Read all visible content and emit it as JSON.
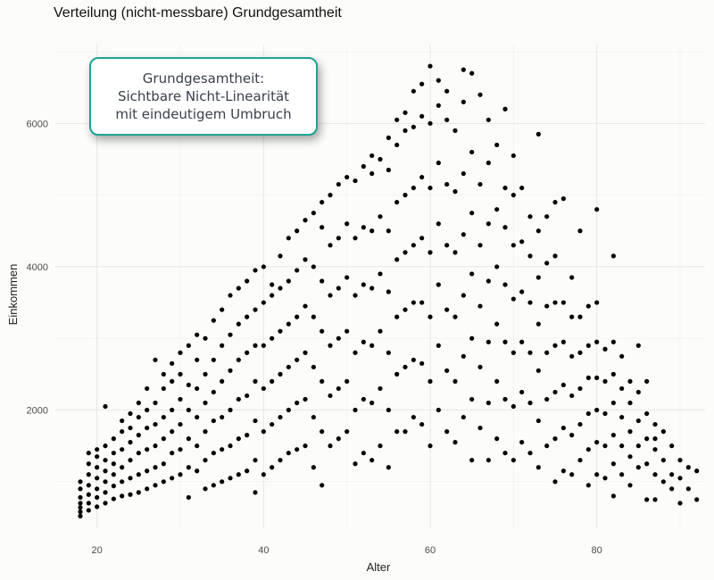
{
  "chart_data": {
    "type": "scatter",
    "title": "Verteilung (nicht-messbare) Grundgesamtheit",
    "xlabel": "Alter",
    "ylabel": "Einkommen",
    "xlim": [
      15,
      93
    ],
    "ylim": [
      350,
      7100
    ],
    "x_ticks": [
      20,
      40,
      60,
      80
    ],
    "y_ticks": [
      2000,
      4000,
      6000
    ],
    "grid": true,
    "point_color": "#000000",
    "annotation": {
      "lines": [
        "Grundgesamtheit:",
        "Sichtbare Nicht-Linearität",
        "mit eindeutigem Umbruch"
      ],
      "border_color": "#1fa393"
    },
    "trend_description": "increasing until about age 60, then decreasing",
    "points": [
      [
        18,
        520
      ],
      [
        18,
        640
      ],
      [
        18,
        780
      ],
      [
        18,
        900
      ],
      [
        18,
        1000
      ],
      [
        18,
        700
      ],
      [
        18,
        580
      ],
      [
        19,
        600
      ],
      [
        19,
        820
      ],
      [
        19,
        950
      ],
      [
        19,
        1100
      ],
      [
        19,
        1250
      ],
      [
        19,
        1400
      ],
      [
        19,
        700
      ],
      [
        20,
        650
      ],
      [
        20,
        900
      ],
      [
        20,
        1050
      ],
      [
        20,
        1200
      ],
      [
        20,
        1350
      ],
      [
        20,
        1450
      ],
      [
        20,
        780
      ],
      [
        21,
        700
      ],
      [
        21,
        850
      ],
      [
        21,
        1000
      ],
      [
        21,
        1150
      ],
      [
        21,
        1300
      ],
      [
        21,
        1500
      ],
      [
        21,
        2050
      ],
      [
        22,
        760
      ],
      [
        22,
        940
      ],
      [
        22,
        1100
      ],
      [
        22,
        1250
      ],
      [
        22,
        1400
      ],
      [
        22,
        1600
      ],
      [
        23,
        800
      ],
      [
        23,
        1000
      ],
      [
        23,
        1200
      ],
      [
        23,
        1450
      ],
      [
        23,
        1700
      ],
      [
        23,
        1850
      ],
      [
        24,
        820
      ],
      [
        24,
        1050
      ],
      [
        24,
        1300
      ],
      [
        24,
        1550
      ],
      [
        24,
        1750
      ],
      [
        24,
        1950
      ],
      [
        25,
        850
      ],
      [
        25,
        1100
      ],
      [
        25,
        1400
      ],
      [
        25,
        1650
      ],
      [
        25,
        1900
      ],
      [
        25,
        2100
      ],
      [
        26,
        900
      ],
      [
        26,
        1150
      ],
      [
        26,
        1450
      ],
      [
        26,
        1750
      ],
      [
        26,
        2000
      ],
      [
        26,
        2300
      ],
      [
        27,
        950
      ],
      [
        27,
        1200
      ],
      [
        27,
        1500
      ],
      [
        27,
        1800
      ],
      [
        27,
        2100
      ],
      [
        27,
        2700
      ],
      [
        28,
        1000
      ],
      [
        28,
        1250
      ],
      [
        28,
        1600
      ],
      [
        28,
        1900
      ],
      [
        28,
        2300
      ],
      [
        28,
        2500
      ],
      [
        29,
        1050
      ],
      [
        29,
        1400
      ],
      [
        29,
        1700
      ],
      [
        29,
        2000
      ],
      [
        29,
        2400
      ],
      [
        29,
        2650
      ],
      [
        30,
        1100
      ],
      [
        30,
        1450
      ],
      [
        30,
        1800
      ],
      [
        30,
        2150
      ],
      [
        30,
        2500
      ],
      [
        30,
        2800
      ],
      [
        31,
        780
      ],
      [
        31,
        1200
      ],
      [
        31,
        1600
      ],
      [
        31,
        2000
      ],
      [
        31,
        2350
      ],
      [
        31,
        2900
      ],
      [
        32,
        1150
      ],
      [
        32,
        1500
      ],
      [
        32,
        1900
      ],
      [
        32,
        2300
      ],
      [
        32,
        2700
      ],
      [
        32,
        3050
      ],
      [
        33,
        900
      ],
      [
        33,
        1300
      ],
      [
        33,
        1700
      ],
      [
        33,
        2100
      ],
      [
        33,
        2500
      ],
      [
        33,
        3000
      ],
      [
        34,
        950
      ],
      [
        34,
        1400
      ],
      [
        34,
        1850
      ],
      [
        34,
        2250
      ],
      [
        34,
        2700
      ],
      [
        34,
        3250
      ],
      [
        35,
        1000
      ],
      [
        35,
        1450
      ],
      [
        35,
        1900
      ],
      [
        35,
        2400
      ],
      [
        35,
        2900
      ],
      [
        35,
        3400
      ],
      [
        36,
        1050
      ],
      [
        36,
        1500
      ],
      [
        36,
        2000
      ],
      [
        36,
        2550
      ],
      [
        36,
        3050
      ],
      [
        36,
        3600
      ],
      [
        37,
        1100
      ],
      [
        37,
        1600
      ],
      [
        37,
        2150
      ],
      [
        37,
        2700
      ],
      [
        37,
        3200
      ],
      [
        37,
        3700
      ],
      [
        38,
        1150
      ],
      [
        38,
        1650
      ],
      [
        38,
        2200
      ],
      [
        38,
        2800
      ],
      [
        38,
        3300
      ],
      [
        38,
        3800
      ],
      [
        39,
        850
      ],
      [
        39,
        1300
      ],
      [
        39,
        1850
      ],
      [
        39,
        2400
      ],
      [
        39,
        2900
      ],
      [
        39,
        3400
      ],
      [
        39,
        3950
      ],
      [
        40,
        1100
      ],
      [
        40,
        1700
      ],
      [
        40,
        2300
      ],
      [
        40,
        2900
      ],
      [
        40,
        3500
      ],
      [
        40,
        4000
      ],
      [
        41,
        1200
      ],
      [
        41,
        1800
      ],
      [
        41,
        2400
      ],
      [
        41,
        3000
      ],
      [
        41,
        3600
      ],
      [
        41,
        3750
      ],
      [
        42,
        1300
      ],
      [
        42,
        1900
      ],
      [
        42,
        2500
      ],
      [
        42,
        3100
      ],
      [
        42,
        3700
      ],
      [
        42,
        4150
      ],
      [
        43,
        1400
      ],
      [
        43,
        2000
      ],
      [
        43,
        2600
      ],
      [
        43,
        3200
      ],
      [
        43,
        3800
      ],
      [
        43,
        4400
      ],
      [
        44,
        1450
      ],
      [
        44,
        2100
      ],
      [
        44,
        2700
      ],
      [
        44,
        3300
      ],
      [
        44,
        3950
      ],
      [
        44,
        4500
      ],
      [
        45,
        1500
      ],
      [
        45,
        2150
      ],
      [
        45,
        2800
      ],
      [
        45,
        3450
      ],
      [
        45,
        4100
      ],
      [
        45,
        4650
      ],
      [
        46,
        1200
      ],
      [
        46,
        1900
      ],
      [
        46,
        2600
      ],
      [
        46,
        3300
      ],
      [
        46,
        4000
      ],
      [
        46,
        4750
      ],
      [
        47,
        950
      ],
      [
        47,
        1700
      ],
      [
        47,
        2400
      ],
      [
        47,
        3100
      ],
      [
        47,
        3800
      ],
      [
        47,
        4550
      ],
      [
        47,
        4900
      ],
      [
        48,
        1500
      ],
      [
        48,
        2200
      ],
      [
        48,
        2900
      ],
      [
        48,
        3600
      ],
      [
        48,
        4300
      ],
      [
        48,
        5000
      ],
      [
        49,
        1600
      ],
      [
        49,
        2300
      ],
      [
        49,
        3000
      ],
      [
        49,
        3700
      ],
      [
        49,
        4400
      ],
      [
        49,
        5150
      ],
      [
        50,
        1700
      ],
      [
        50,
        2400
      ],
      [
        50,
        3100
      ],
      [
        50,
        3850
      ],
      [
        50,
        4600
      ],
      [
        50,
        5250
      ],
      [
        51,
        1250
      ],
      [
        51,
        2000
      ],
      [
        51,
        2800
      ],
      [
        51,
        3600
      ],
      [
        51,
        4400
      ],
      [
        51,
        5200
      ],
      [
        52,
        1400
      ],
      [
        52,
        2150
      ],
      [
        52,
        2950
      ],
      [
        52,
        3750
      ],
      [
        52,
        4550
      ],
      [
        52,
        5400
      ],
      [
        53,
        1300
      ],
      [
        53,
        2100
      ],
      [
        53,
        2900
      ],
      [
        53,
        3700
      ],
      [
        53,
        4500
      ],
      [
        53,
        5300
      ],
      [
        53,
        5550
      ],
      [
        54,
        1500
      ],
      [
        54,
        2300
      ],
      [
        54,
        3100
      ],
      [
        54,
        3900
      ],
      [
        54,
        4700
      ],
      [
        54,
        5500
      ],
      [
        55,
        1200
      ],
      [
        55,
        2000
      ],
      [
        55,
        2800
      ],
      [
        55,
        3650
      ],
      [
        55,
        4500
      ],
      [
        55,
        5350
      ],
      [
        55,
        5800
      ],
      [
        56,
        1700
      ],
      [
        56,
        2500
      ],
      [
        56,
        3300
      ],
      [
        56,
        4100
      ],
      [
        56,
        4900
      ],
      [
        56,
        5700
      ],
      [
        56,
        6050
      ],
      [
        57,
        1700
      ],
      [
        57,
        2600
      ],
      [
        57,
        3400
      ],
      [
        57,
        4200
      ],
      [
        57,
        5000
      ],
      [
        57,
        5900
      ],
      [
        57,
        6150
      ],
      [
        58,
        1900
      ],
      [
        58,
        2700
      ],
      [
        58,
        3500
      ],
      [
        58,
        4300
      ],
      [
        58,
        5100
      ],
      [
        58,
        5950
      ],
      [
        58,
        6450
      ],
      [
        59,
        1800
      ],
      [
        59,
        2650
      ],
      [
        59,
        3500
      ],
      [
        59,
        4400
      ],
      [
        59,
        5250
      ],
      [
        59,
        6100
      ],
      [
        59,
        6550
      ],
      [
        60,
        1500
      ],
      [
        60,
        2400
      ],
      [
        60,
        3300
      ],
      [
        60,
        4200
      ],
      [
        60,
        5100
      ],
      [
        60,
        6000
      ],
      [
        60,
        6800
      ],
      [
        61,
        2000
      ],
      [
        61,
        2900
      ],
      [
        61,
        3750
      ],
      [
        61,
        4600
      ],
      [
        61,
        5450
      ],
      [
        61,
        6250
      ],
      [
        61,
        6600
      ],
      [
        62,
        1700
      ],
      [
        62,
        2550
      ],
      [
        62,
        3400
      ],
      [
        62,
        4300
      ],
      [
        62,
        5150
      ],
      [
        62,
        6050
      ],
      [
        62,
        6450
      ],
      [
        63,
        1550
      ],
      [
        63,
        2400
      ],
      [
        63,
        3300
      ],
      [
        63,
        4200
      ],
      [
        63,
        5050
      ],
      [
        63,
        5900
      ],
      [
        64,
        1900
      ],
      [
        64,
        2750
      ],
      [
        64,
        3600
      ],
      [
        64,
        4450
      ],
      [
        64,
        5300
      ],
      [
        64,
        6300
      ],
      [
        64,
        6750
      ],
      [
        65,
        1300
      ],
      [
        65,
        2150
      ],
      [
        65,
        3000
      ],
      [
        65,
        3900
      ],
      [
        65,
        4750
      ],
      [
        65,
        5600
      ],
      [
        65,
        6700
      ],
      [
        66,
        1750
      ],
      [
        66,
        2600
      ],
      [
        66,
        3450
      ],
      [
        66,
        4300
      ],
      [
        66,
        5150
      ],
      [
        66,
        6400
      ],
      [
        67,
        1300
      ],
      [
        67,
        2100
      ],
      [
        67,
        2950
      ],
      [
        67,
        3800
      ],
      [
        67,
        4600
      ],
      [
        67,
        5450
      ],
      [
        67,
        6050
      ],
      [
        68,
        1600
      ],
      [
        68,
        2400
      ],
      [
        68,
        3200
      ],
      [
        68,
        4000
      ],
      [
        68,
        4800
      ],
      [
        68,
        5700
      ],
      [
        69,
        1400
      ],
      [
        69,
        2150
      ],
      [
        69,
        2950
      ],
      [
        69,
        3750
      ],
      [
        69,
        4550
      ],
      [
        69,
        5100
      ],
      [
        69,
        6200
      ],
      [
        70,
        1300
      ],
      [
        70,
        2050
      ],
      [
        70,
        2800
      ],
      [
        70,
        3550
      ],
      [
        70,
        4300
      ],
      [
        70,
        5000
      ],
      [
        70,
        5550
      ],
      [
        71,
        1550
      ],
      [
        71,
        2250
      ],
      [
        71,
        2950
      ],
      [
        71,
        3650
      ],
      [
        71,
        4350
      ],
      [
        71,
        5100
      ],
      [
        72,
        1400
      ],
      [
        72,
        2100
      ],
      [
        72,
        2800
      ],
      [
        72,
        3500
      ],
      [
        72,
        4150
      ],
      [
        72,
        4700
      ],
      [
        73,
        1200
      ],
      [
        73,
        1850
      ],
      [
        73,
        2550
      ],
      [
        73,
        3200
      ],
      [
        73,
        3850
      ],
      [
        73,
        4500
      ],
      [
        73,
        5850
      ],
      [
        74,
        1500
      ],
      [
        74,
        2150
      ],
      [
        74,
        2800
      ],
      [
        74,
        3450
      ],
      [
        74,
        4050
      ],
      [
        74,
        4700
      ],
      [
        75,
        1000
      ],
      [
        75,
        1600
      ],
      [
        75,
        2250
      ],
      [
        75,
        2900
      ],
      [
        75,
        3500
      ],
      [
        75,
        4150
      ],
      [
        75,
        4900
      ],
      [
        76,
        1150
      ],
      [
        76,
        1750
      ],
      [
        76,
        2350
      ],
      [
        76,
        2950
      ],
      [
        76,
        3500
      ],
      [
        76,
        4950
      ],
      [
        77,
        1100
      ],
      [
        77,
        1650
      ],
      [
        77,
        2200
      ],
      [
        77,
        2750
      ],
      [
        77,
        3300
      ],
      [
        77,
        3850
      ],
      [
        78,
        1300
      ],
      [
        78,
        1800
      ],
      [
        78,
        2300
      ],
      [
        78,
        2800
      ],
      [
        78,
        3300
      ],
      [
        78,
        4500
      ],
      [
        79,
        950
      ],
      [
        79,
        1450
      ],
      [
        79,
        1950
      ],
      [
        79,
        2450
      ],
      [
        79,
        2900
      ],
      [
        79,
        3450
      ],
      [
        80,
        1100
      ],
      [
        80,
        1550
      ],
      [
        80,
        2000
      ],
      [
        80,
        2450
      ],
      [
        80,
        2950
      ],
      [
        80,
        3500
      ],
      [
        80,
        4800
      ],
      [
        81,
        1050
      ],
      [
        81,
        1500
      ],
      [
        81,
        1950
      ],
      [
        81,
        2400
      ],
      [
        81,
        2850
      ],
      [
        82,
        800
      ],
      [
        82,
        1250
      ],
      [
        82,
        1650
      ],
      [
        82,
        2100
      ],
      [
        82,
        2500
      ],
      [
        82,
        2950
      ],
      [
        82,
        4150
      ],
      [
        83,
        1100
      ],
      [
        83,
        1500
      ],
      [
        83,
        1900
      ],
      [
        83,
        2300
      ],
      [
        83,
        2750
      ],
      [
        84,
        950
      ],
      [
        84,
        1350
      ],
      [
        84,
        1700
      ],
      [
        84,
        2100
      ],
      [
        84,
        2400
      ],
      [
        85,
        1200
      ],
      [
        85,
        1500
      ],
      [
        85,
        1850
      ],
      [
        85,
        2250
      ],
      [
        85,
        2900
      ],
      [
        86,
        750
      ],
      [
        86,
        1250
      ],
      [
        86,
        1600
      ],
      [
        86,
        1950
      ],
      [
        86,
        2400
      ],
      [
        87,
        750
      ],
      [
        87,
        1100
      ],
      [
        87,
        1450
      ],
      [
        87,
        1800
      ],
      [
        87,
        1600
      ],
      [
        88,
        1000
      ],
      [
        88,
        1300
      ],
      [
        88,
        1700
      ],
      [
        89,
        900
      ],
      [
        89,
        1100
      ],
      [
        89,
        1500
      ],
      [
        90,
        700
      ],
      [
        90,
        1050
      ],
      [
        90,
        1300
      ],
      [
        91,
        900
      ],
      [
        91,
        1200
      ],
      [
        92,
        750
      ],
      [
        92,
        1150
      ]
    ]
  }
}
